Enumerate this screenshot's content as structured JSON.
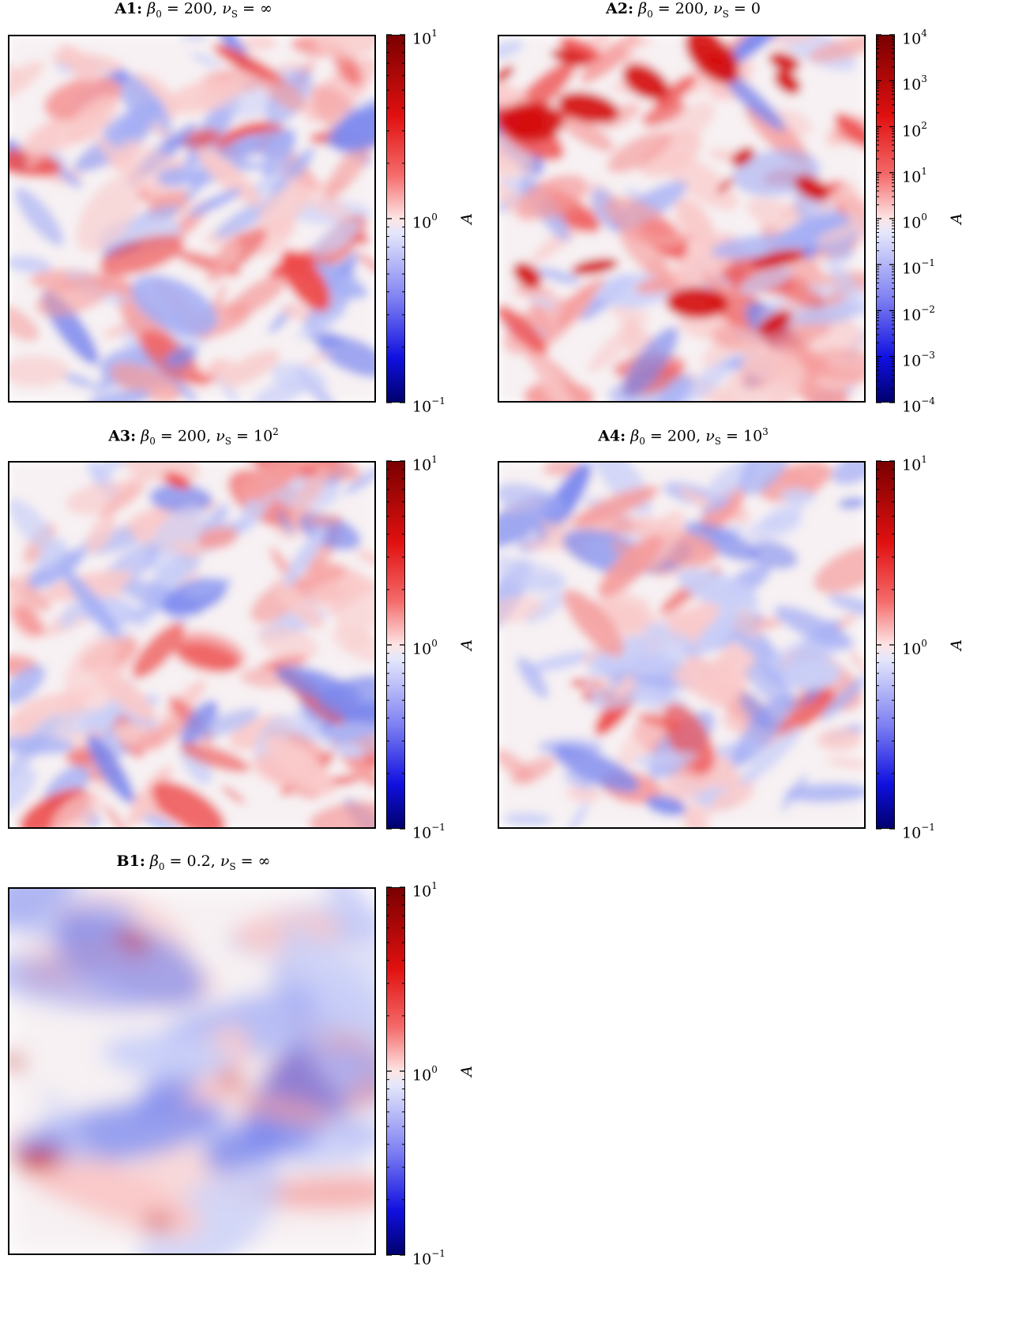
{
  "chart_data": [
    {
      "type": "heatmap",
      "label": "A1:",
      "title_math": "β0 = 200, νS = ∞",
      "title_parts": {
        "beta": "β",
        "beta_sub": "0",
        "beta_val": " = 200, ",
        "nu": "ν",
        "nu_sub": "S",
        "nu_val": " = ∞"
      },
      "colorbar": {
        "label": "A",
        "scale": "log",
        "ticks": [
          {
            "base": "10",
            "exp": "1"
          },
          {
            "base": "10",
            "exp": "0"
          },
          {
            "base": "10",
            "exp": "−1"
          }
        ],
        "range": [
          0.1,
          10
        ],
        "colormap": "seismic"
      },
      "seed": 11,
      "balance": 0.1,
      "detail": "fine",
      "dark": false
    },
    {
      "type": "heatmap",
      "label": "A2:",
      "title_math": "β0 = 200, νS = 0",
      "title_parts": {
        "beta": "β",
        "beta_sub": "0",
        "beta_val": " = 200, ",
        "nu": "ν",
        "nu_sub": "S",
        "nu_val": " = 0"
      },
      "colorbar": {
        "label": "A",
        "scale": "log",
        "ticks": [
          {
            "base": "10",
            "exp": "4"
          },
          {
            "base": "10",
            "exp": "3"
          },
          {
            "base": "10",
            "exp": "2"
          },
          {
            "base": "10",
            "exp": "1"
          },
          {
            "base": "10",
            "exp": "0"
          },
          {
            "base": "10",
            "exp": "−1"
          },
          {
            "base": "10",
            "exp": "−2"
          },
          {
            "base": "10",
            "exp": "−3"
          },
          {
            "base": "10",
            "exp": "−4"
          }
        ],
        "range": [
          0.0001,
          10000
        ],
        "colormap": "seismic"
      },
      "seed": 23,
      "balance": 0.45,
      "detail": "fine",
      "dark": true
    },
    {
      "type": "heatmap",
      "label": "A3:",
      "title_math": "β0 = 200, νS = 10²",
      "title_parts": {
        "beta": "β",
        "beta_sub": "0",
        "beta_val": " = 200, ",
        "nu": "ν",
        "nu_sub": "S",
        "nu_val": " = 10",
        "nu_sup": "2"
      },
      "colorbar": {
        "label": "A",
        "scale": "log",
        "ticks": [
          {
            "base": "10",
            "exp": "1"
          },
          {
            "base": "10",
            "exp": "0"
          },
          {
            "base": "10",
            "exp": "−1"
          }
        ],
        "range": [
          0.1,
          10
        ],
        "colormap": "seismic"
      },
      "seed": 37,
      "balance": 0.05,
      "detail": "fine",
      "dark": false
    },
    {
      "type": "heatmap",
      "label": "A4:",
      "title_math": "β0 = 200, νS = 10³",
      "title_parts": {
        "beta": "β",
        "beta_sub": "0",
        "beta_val": " = 200, ",
        "nu": "ν",
        "nu_sub": "S",
        "nu_val": " = 10",
        "nu_sup": "3"
      },
      "colorbar": {
        "label": "A",
        "scale": "log",
        "ticks": [
          {
            "base": "10",
            "exp": "1"
          },
          {
            "base": "10",
            "exp": "0"
          },
          {
            "base": "10",
            "exp": "−1"
          }
        ],
        "range": [
          0.1,
          10
        ],
        "colormap": "seismic"
      },
      "seed": 53,
      "balance": 0.0,
      "detail": "fine",
      "dark": false
    },
    {
      "type": "heatmap",
      "label": "B1:",
      "title_math": "β0 = 0.2, νS = ∞",
      "title_parts": {
        "beta": "β",
        "beta_sub": "0",
        "beta_val": " = 0.2, ",
        "nu": "ν",
        "nu_sub": "S",
        "nu_val": " = ∞"
      },
      "colorbar": {
        "label": "A",
        "scale": "log",
        "ticks": [
          {
            "base": "10",
            "exp": "1"
          },
          {
            "base": "10",
            "exp": "0"
          },
          {
            "base": "10",
            "exp": "−1"
          }
        ],
        "range": [
          0.1,
          10
        ],
        "colormap": "seismic"
      },
      "seed": 71,
      "balance": 0.1,
      "detail": "coarse",
      "dark": true
    }
  ]
}
